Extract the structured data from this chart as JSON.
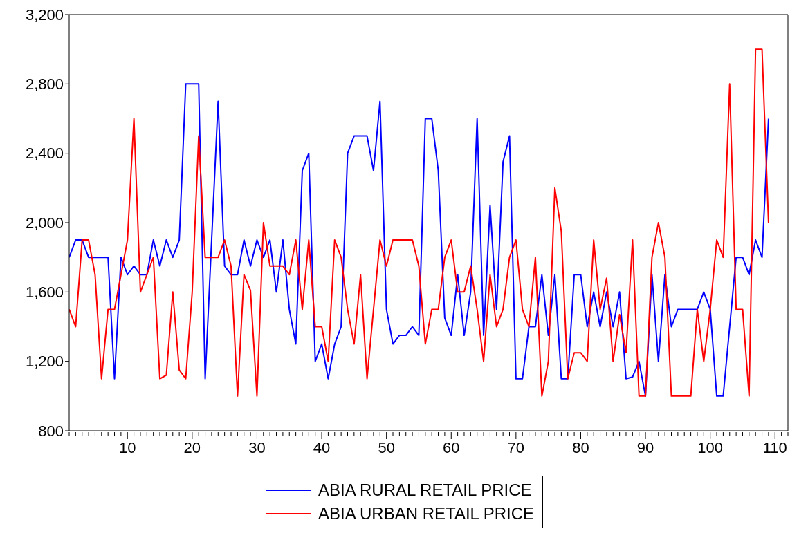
{
  "chart_data": {
    "type": "line",
    "xlim": [
      1,
      112
    ],
    "xticks": [
      10,
      20,
      30,
      40,
      50,
      60,
      70,
      80,
      90,
      100,
      110
    ],
    "ylim": [
      800,
      3200
    ],
    "yticks": [
      800,
      {
        "value": 1200,
        "label": "1,200"
      },
      {
        "value": 1600,
        "label": "1,600"
      },
      {
        "value": 2000,
        "label": "2,000"
      },
      {
        "value": 2400,
        "label": "2,400"
      },
      {
        "value": 2800,
        "label": "2,800"
      },
      {
        "value": 3200,
        "label": "3,200"
      }
    ],
    "grid": false,
    "legend": "bottom",
    "marker": "none",
    "line_style": "solid",
    "x": [
      1,
      2,
      3,
      4,
      5,
      6,
      7,
      8,
      9,
      10,
      11,
      12,
      13,
      14,
      15,
      16,
      17,
      18,
      19,
      20,
      21,
      22,
      23,
      24,
      25,
      26,
      27,
      28,
      29,
      30,
      31,
      32,
      33,
      34,
      35,
      36,
      37,
      38,
      39,
      40,
      41,
      42,
      43,
      44,
      45,
      46,
      47,
      48,
      49,
      50,
      51,
      52,
      53,
      54,
      55,
      56,
      57,
      58,
      59,
      60,
      61,
      62,
      63,
      64,
      65,
      66,
      67,
      68,
      69,
      70,
      71,
      72,
      73,
      74,
      75,
      76,
      77,
      78,
      79,
      80,
      81,
      82,
      83,
      84,
      85,
      86,
      87,
      88,
      89,
      90,
      91,
      92,
      93,
      94,
      95,
      96,
      97,
      98,
      99,
      100,
      101,
      102,
      103,
      104,
      105,
      106,
      107,
      108,
      109
    ],
    "series": [
      {
        "name": "ABIA RURAL RETAIL PRICE",
        "color": "#0000ff",
        "values": [
          1800,
          1900,
          1900,
          1800,
          1800,
          1800,
          1800,
          1100,
          1800,
          1700,
          1750,
          1700,
          1700,
          1900,
          1750,
          1900,
          1800,
          1900,
          2800,
          2800,
          2800,
          1100,
          1900,
          2700,
          1750,
          1700,
          1700,
          1900,
          1750,
          1900,
          1800,
          1900,
          1600,
          1900,
          1500,
          1300,
          2300,
          2400,
          1200,
          1300,
          1100,
          1300,
          1400,
          2400,
          2500,
          2500,
          2500,
          2300,
          2700,
          1500,
          1300,
          1350,
          1350,
          1400,
          1350,
          2600,
          2600,
          2300,
          1450,
          1350,
          1700,
          1350,
          1600,
          2600,
          1350,
          2100,
          1500,
          2350,
          2500,
          1100,
          1100,
          1400,
          1400,
          1700,
          1350,
          1700,
          1100,
          1100,
          1700,
          1700,
          1400,
          1600,
          1400,
          1600,
          1400,
          1600,
          1100,
          1110,
          1200,
          1000,
          1700,
          1200,
          1700,
          1400,
          1500,
          1500,
          1500,
          1500,
          1600,
          1500,
          1000,
          1000,
          1400,
          1800,
          1800,
          1700,
          1900,
          1800,
          2600
        ]
      },
      {
        "name": "ABIA URBAN RETAIL PRICE",
        "color": "#ff0000",
        "values": [
          1500,
          1400,
          1900,
          1900,
          1700,
          1100,
          1500,
          1500,
          1700,
          1900,
          2600,
          1600,
          1700,
          1800,
          1100,
          1120,
          1600,
          1150,
          1100,
          1600,
          2500,
          1800,
          1800,
          1800,
          1900,
          1750,
          1000,
          1700,
          1610,
          1000,
          2000,
          1750,
          1750,
          1750,
          1700,
          1900,
          1500,
          1900,
          1400,
          1400,
          1200,
          1900,
          1800,
          1500,
          1300,
          1700,
          1100,
          1500,
          1900,
          1750,
          1900,
          1900,
          1900,
          1900,
          1750,
          1300,
          1500,
          1500,
          1800,
          1900,
          1600,
          1600,
          1750,
          1500,
          1200,
          1700,
          1400,
          1500,
          1800,
          1900,
          1500,
          1400,
          1800,
          1000,
          1200,
          2200,
          1950,
          1100,
          1250,
          1250,
          1200,
          1900,
          1500,
          1680,
          1200,
          1470,
          1250,
          1900,
          1000,
          1000,
          1800,
          2000,
          1800,
          1000,
          1000,
          1000,
          1000,
          1500,
          1200,
          1500,
          1900,
          1800,
          2800,
          1500,
          1500,
          1000,
          3000,
          3000,
          2000
        ]
      }
    ]
  }
}
